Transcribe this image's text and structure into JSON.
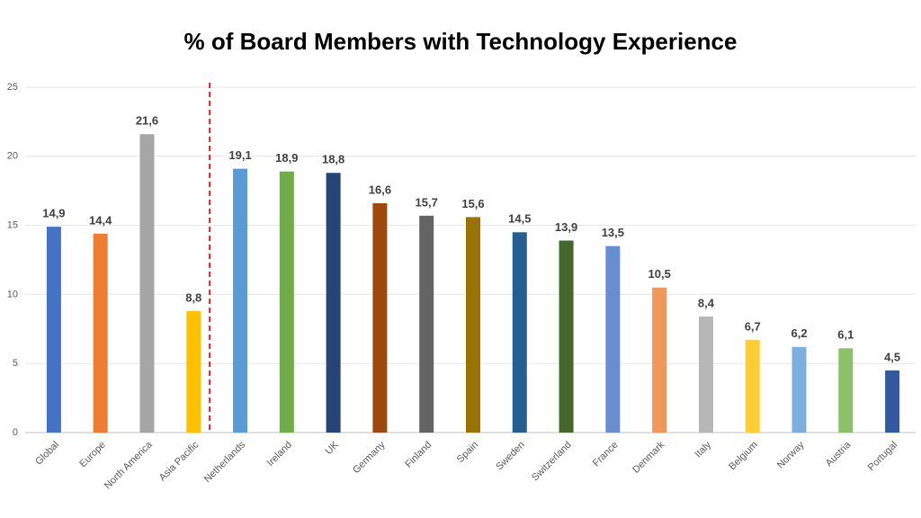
{
  "chart_data": {
    "type": "bar",
    "title": "% of Board Members with Technology Experience",
    "categories": [
      "Global",
      "Europe",
      "North America",
      "Asia Pacific",
      "Netherlands",
      "Ireland",
      "UK",
      "Germany",
      "Finland",
      "Spain",
      "Sweden",
      "Switzerland",
      "France",
      "Denmark",
      "Italy",
      "Belgium",
      "Norway",
      "Austria",
      "Portugal"
    ],
    "values": [
      14.9,
      14.4,
      21.6,
      8.8,
      19.1,
      18.9,
      18.8,
      16.6,
      15.7,
      15.6,
      14.5,
      13.9,
      13.5,
      10.5,
      8.4,
      6.7,
      6.2,
      6.1,
      4.5
    ],
    "value_labels": [
      "14,9",
      "14,4",
      "21,6",
      "8,8",
      "19,1",
      "18,9",
      "18,8",
      "16,6",
      "15,7",
      "15,6",
      "14,5",
      "13,9",
      "13,5",
      "10,5",
      "8,4",
      "6,7",
      "6,2",
      "6,1",
      "4,5"
    ],
    "colors": [
      "#4472c4",
      "#ed7d31",
      "#a5a5a5",
      "#ffc000",
      "#5b9bd5",
      "#70ad47",
      "#264478",
      "#9e480e",
      "#636363",
      "#997300",
      "#255e91",
      "#43682b",
      "#698ed0",
      "#f1975a",
      "#b7b7b7",
      "#ffcd33",
      "#7cafdd",
      "#8cc168",
      "#335aa1"
    ],
    "ylim": [
      0,
      25
    ],
    "yticks": [
      0,
      5,
      10,
      15,
      20,
      25
    ],
    "grid": true
  }
}
